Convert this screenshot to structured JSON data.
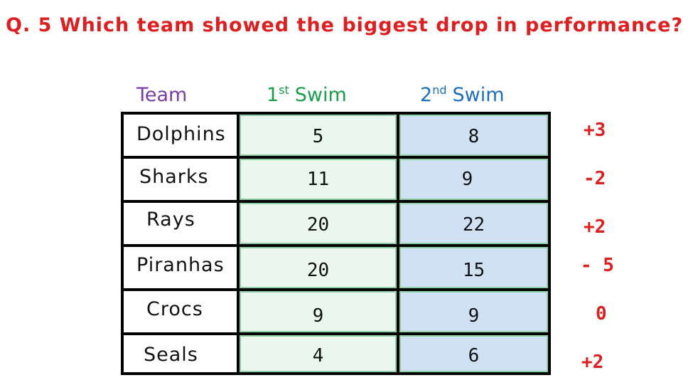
{
  "question": "Q. 5 Which team showed the biggest drop in performance?",
  "headers": {
    "team": "Team",
    "swim1_num": "1",
    "swim1_sup": "st",
    "swim1_word": "Swim",
    "swim2_num": "2",
    "swim2_sup": "nd",
    "swim2_word": "Swim"
  },
  "rows": [
    {
      "team": "Dolphins",
      "swim1": "5",
      "swim2": "8",
      "diff": "+3"
    },
    {
      "team": "Sharks",
      "swim1": "11",
      "swim2": "9",
      "diff": "-2"
    },
    {
      "team": "Rays",
      "swim1": "20",
      "swim2": "22",
      "diff": "+2"
    },
    {
      "team": "Piranhas",
      "swim1": "20",
      "swim2": "15",
      "diff": "- 5"
    },
    {
      "team": "Crocs",
      "swim1": "9",
      "swim2": "9",
      "diff": "0"
    },
    {
      "team": "Seals",
      "swim1": "4",
      "swim2": "6",
      "diff": "+2"
    }
  ],
  "colors": {
    "question": "#e11d1d",
    "team_header": "#7b3ba6",
    "swim1_header": "#17a04a",
    "swim2_header": "#1b6fc2",
    "swim1_fill": "#eaf7ee",
    "swim2_fill": "#cfe1f3",
    "diff": "#e11d1d"
  }
}
